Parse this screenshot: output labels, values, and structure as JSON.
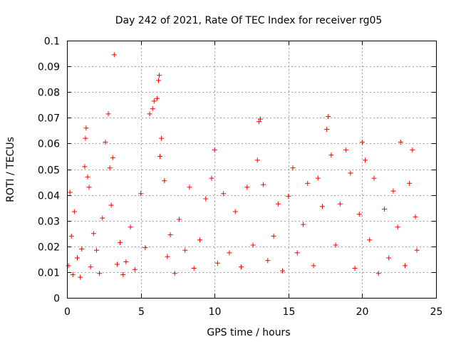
{
  "chart_data": {
    "type": "scatter",
    "title": "Day 242 of 2021, Rate Of TEC Index for receiver rg05",
    "xlabel": "GPS time / hours",
    "ylabel": "ROTI / TECUs",
    "xlim": [
      0,
      25
    ],
    "ylim": [
      0,
      0.1
    ],
    "x_ticks": [
      "0",
      "5",
      "10",
      "15",
      "20",
      "25"
    ],
    "y_ticks": [
      "0",
      "0.01",
      "0.02",
      "0.03",
      "0.04",
      "0.05",
      "0.06",
      "0.07",
      "0.08",
      "0.09",
      "0.1"
    ],
    "grid": true,
    "marker": "+",
    "color": "#ff0000",
    "series": [
      {
        "points": [
          [
            0.1,
            0.0125
          ],
          [
            0.2,
            0.041
          ],
          [
            0.3,
            0.024
          ],
          [
            0.4,
            0.009
          ],
          [
            0.5,
            0.0335
          ],
          [
            0.7,
            0.0155
          ],
          [
            0.9,
            0.008
          ],
          [
            1.0,
            0.019
          ],
          [
            1.2,
            0.051
          ],
          [
            1.25,
            0.062
          ],
          [
            1.3,
            0.066
          ],
          [
            1.4,
            0.047
          ],
          [
            1.5,
            0.043
          ],
          [
            1.6,
            0.012
          ],
          [
            1.8,
            0.025
          ],
          [
            2.0,
            0.0185
          ],
          [
            2.2,
            0.0095
          ],
          [
            2.4,
            0.031
          ],
          [
            2.6,
            0.0605
          ],
          [
            2.8,
            0.0715
          ],
          [
            2.9,
            0.0505
          ],
          [
            3.0,
            0.036
          ],
          [
            3.1,
            0.0545
          ],
          [
            3.2,
            0.0945
          ],
          [
            3.4,
            0.013
          ],
          [
            3.6,
            0.0215
          ],
          [
            3.8,
            0.009
          ],
          [
            4.0,
            0.014
          ],
          [
            4.3,
            0.0275
          ],
          [
            4.6,
            0.011
          ],
          [
            5.0,
            0.0405
          ],
          [
            5.3,
            0.0195
          ],
          [
            5.6,
            0.0715
          ],
          [
            5.8,
            0.0735
          ],
          [
            5.9,
            0.0765
          ],
          [
            6.1,
            0.0775
          ],
          [
            6.2,
            0.0845
          ],
          [
            6.25,
            0.0865
          ],
          [
            6.3,
            0.055
          ],
          [
            6.4,
            0.062
          ],
          [
            6.6,
            0.0455
          ],
          [
            6.8,
            0.016
          ],
          [
            7.0,
            0.0245
          ],
          [
            7.3,
            0.0095
          ],
          [
            7.6,
            0.0305
          ],
          [
            8.0,
            0.0185
          ],
          [
            8.3,
            0.043
          ],
          [
            8.6,
            0.0115
          ],
          [
            9.0,
            0.0225
          ],
          [
            9.4,
            0.0385
          ],
          [
            9.8,
            0.0465
          ],
          [
            10.0,
            0.0575
          ],
          [
            10.2,
            0.0135
          ],
          [
            10.6,
            0.0405
          ],
          [
            11.0,
            0.0175
          ],
          [
            11.4,
            0.0335
          ],
          [
            11.8,
            0.012
          ],
          [
            12.2,
            0.043
          ],
          [
            12.6,
            0.0205
          ],
          [
            12.9,
            0.0535
          ],
          [
            13.0,
            0.0685
          ],
          [
            13.1,
            0.0695
          ],
          [
            13.3,
            0.044
          ],
          [
            13.6,
            0.0145
          ],
          [
            14.0,
            0.024
          ],
          [
            14.3,
            0.0365
          ],
          [
            14.6,
            0.0105
          ],
          [
            15.0,
            0.0395
          ],
          [
            15.3,
            0.0505
          ],
          [
            15.6,
            0.0175
          ],
          [
            16.0,
            0.0285
          ],
          [
            16.3,
            0.0445
          ],
          [
            16.7,
            0.0125
          ],
          [
            17.0,
            0.0465
          ],
          [
            17.3,
            0.0355
          ],
          [
            17.6,
            0.0655
          ],
          [
            17.7,
            0.0705
          ],
          [
            17.9,
            0.0555
          ],
          [
            18.2,
            0.0205
          ],
          [
            18.5,
            0.0365
          ],
          [
            18.9,
            0.0575
          ],
          [
            19.2,
            0.0485
          ],
          [
            19.5,
            0.0115
          ],
          [
            19.8,
            0.0325
          ],
          [
            20.0,
            0.0605
          ],
          [
            20.2,
            0.0535
          ],
          [
            20.5,
            0.0225
          ],
          [
            20.8,
            0.0465
          ],
          [
            21.1,
            0.0095
          ],
          [
            21.5,
            0.0345
          ],
          [
            21.8,
            0.0155
          ],
          [
            22.1,
            0.0415
          ],
          [
            22.4,
            0.0275
          ],
          [
            22.6,
            0.0605
          ],
          [
            22.9,
            0.0125
          ],
          [
            23.2,
            0.0445
          ],
          [
            23.4,
            0.0575
          ],
          [
            23.6,
            0.0315
          ],
          [
            23.7,
            0.0185
          ]
        ]
      }
    ]
  }
}
